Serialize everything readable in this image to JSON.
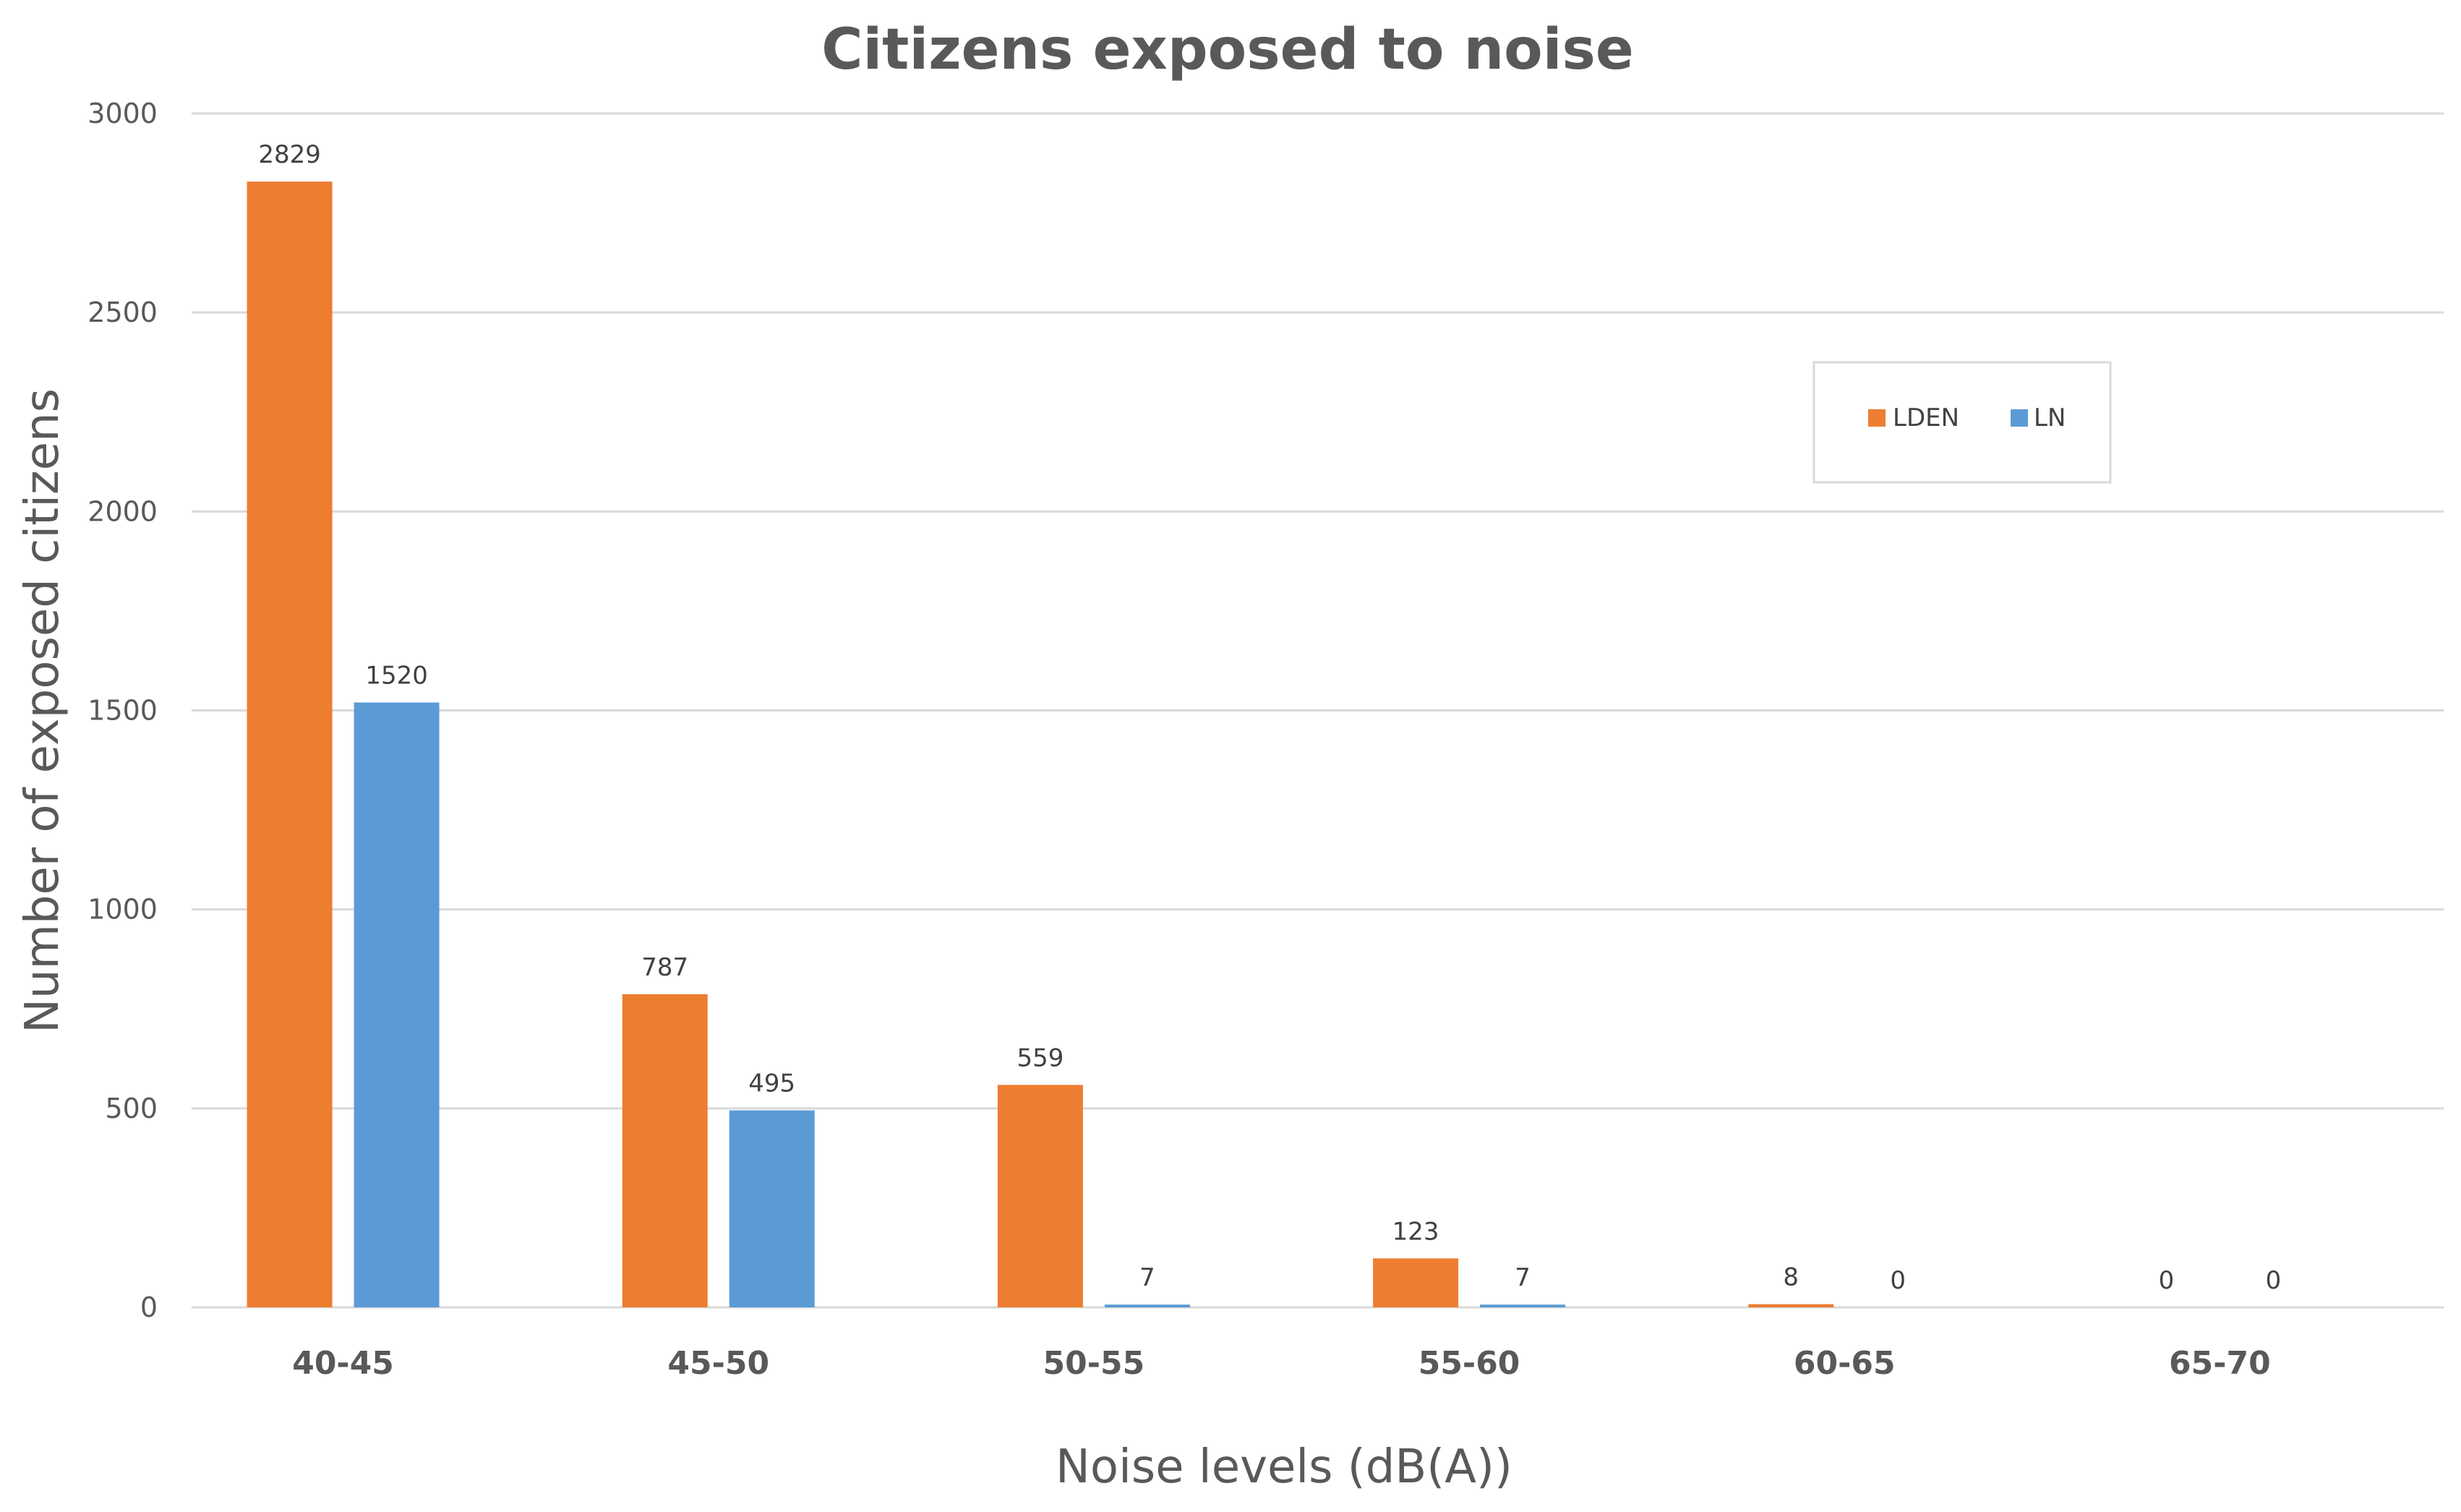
{
  "chart_data": {
    "type": "bar",
    "title": "Citizens exposed to noise",
    "xlabel": "Noise levels (dB(A))",
    "ylabel": "Number of exposed citizens",
    "categories": [
      "40-45",
      "45-50",
      "50-55",
      "55-60",
      "60-65",
      "65-70"
    ],
    "series": [
      {
        "name": "LDEN",
        "color": "#ED7D31",
        "values": [
          2829,
          787,
          559,
          123,
          8,
          0
        ]
      },
      {
        "name": "LN",
        "color": "#5B9BD5",
        "values": [
          1520,
          495,
          7,
          7,
          0,
          0
        ]
      }
    ],
    "ylim": [
      0,
      3000
    ],
    "yticks": [
      "0",
      "500",
      "1000",
      "1500",
      "2000",
      "2500",
      "3000"
    ],
    "grid": true,
    "legend": "top-right",
    "colors": {
      "gridline": "#D9D9D9",
      "text": "#595959"
    }
  }
}
